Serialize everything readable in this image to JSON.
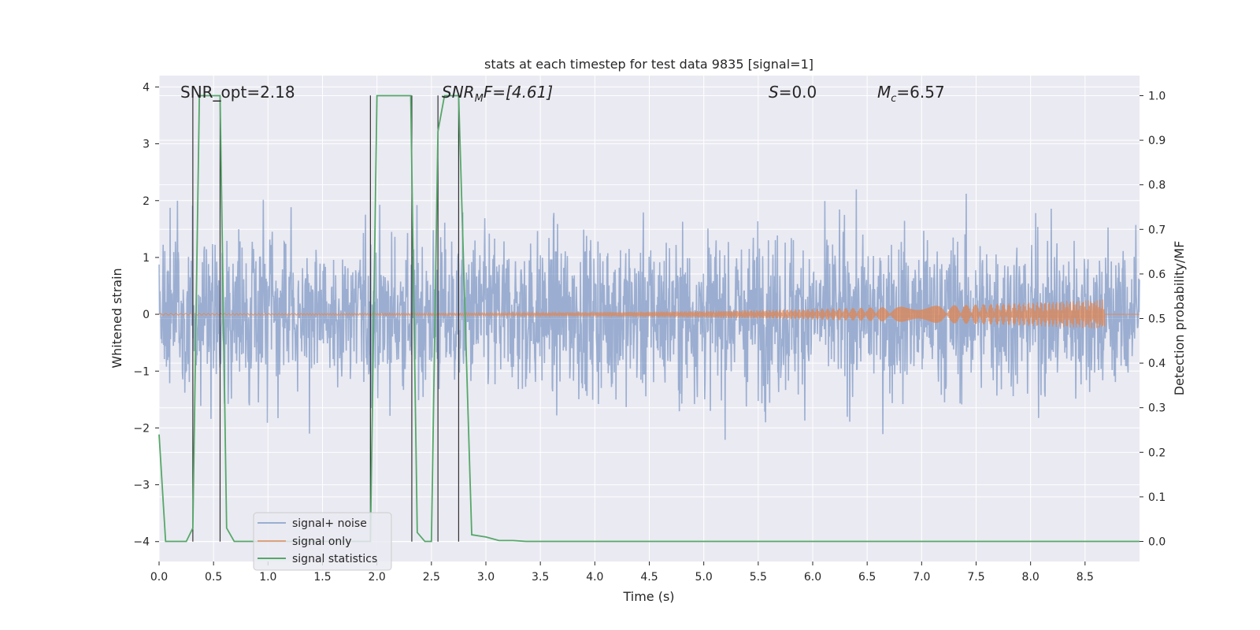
{
  "chart_data": {
    "type": "line",
    "title": "stats at each timestep for test data 9835 [signal=1]",
    "xlabel": "Time (s)",
    "ylabel_left": "Whitened strain",
    "ylabel_right": "Detection probability/MF",
    "xlim": [
      0.0,
      9.0
    ],
    "ylim_left": [
      -4.35,
      4.2
    ],
    "ylim_right": [
      -0.045,
      1.045
    ],
    "x_ticks": [
      "0.0",
      "0.5",
      "1.0",
      "1.5",
      "2.0",
      "2.5",
      "3.0",
      "3.5",
      "4.0",
      "4.5",
      "5.0",
      "5.5",
      "6.0",
      "6.5",
      "7.0",
      "7.5",
      "8.0",
      "8.5"
    ],
    "y_ticks_left": [
      "4",
      "3",
      "2",
      "1",
      "0",
      "−1",
      "−2",
      "−3",
      "−4"
    ],
    "y_ticks_right": [
      "1.0",
      "0.9",
      "0.8",
      "0.7",
      "0.6",
      "0.5",
      "0.4",
      "0.3",
      "0.2",
      "0.1",
      "0.0"
    ],
    "grid": true,
    "legend_position": "lower-left",
    "annotations": {
      "snr_opt": "SNR_opt=2.18",
      "snr_mf_base": "SNR",
      "snr_mf_sub": "M",
      "snr_mf_rest": "F=[4.61]",
      "s_var": "S",
      "s_rest": "=0.0",
      "mc_base": "M",
      "mc_sub": "c",
      "mc_rest": "=6.57"
    },
    "colors": {
      "background": "#eaeaf2",
      "grid": "#ffffff",
      "noise": "#4c72b0",
      "signal": "#dd8452",
      "stat": "#55a868",
      "vline": "#333333"
    },
    "noise_params": {
      "baseline_std": 0.85,
      "spike_peak": 3.85,
      "spike_trough": -3.8
    },
    "signal_only": {
      "start_x": 0.0,
      "end_x": 8.68,
      "peak_amplitude": 0.25,
      "growth_exponent": 3.0
    },
    "vertical_lines": [
      {
        "x": 0.31,
        "y": [
          -4.0,
          3.85
        ]
      },
      {
        "x": 0.56,
        "y": [
          -4.0,
          3.85
        ]
      },
      {
        "x": 1.94,
        "y": [
          -4.0,
          3.85
        ]
      },
      {
        "x": 2.32,
        "y": [
          -4.0,
          3.85
        ]
      },
      {
        "x": 2.56,
        "y": [
          -4.0,
          3.85
        ]
      },
      {
        "x": 2.75,
        "y": [
          -4.0,
          3.85
        ]
      }
    ],
    "series": [
      {
        "name": "signal+ noise",
        "axis": "left",
        "description": "noise"
      },
      {
        "name": "signal only",
        "axis": "left",
        "description": "signal"
      },
      {
        "name": "signal statistics",
        "axis": "right",
        "x": [
          0.0,
          0.06,
          0.18,
          0.25,
          0.31,
          0.37,
          0.56,
          0.62,
          0.69,
          1.0,
          1.5,
          1.94,
          2.0,
          2.31,
          2.37,
          2.44,
          2.5,
          2.56,
          2.62,
          2.75,
          2.81,
          2.87,
          3.0,
          3.12,
          3.25,
          3.37,
          4.0,
          5.0,
          6.0,
          7.0,
          8.0,
          9.0
        ],
        "y": [
          0.24,
          0.0,
          0.0,
          0.0,
          0.03,
          1.0,
          1.0,
          0.03,
          0.0,
          0.0,
          0.0,
          0.0,
          1.0,
          1.0,
          0.02,
          0.0,
          0.0,
          0.92,
          1.0,
          1.0,
          0.5,
          0.015,
          0.01,
          0.002,
          0.002,
          0.0,
          0.0,
          0.0,
          0.0,
          0.0,
          0.0,
          0.0
        ]
      }
    ]
  }
}
